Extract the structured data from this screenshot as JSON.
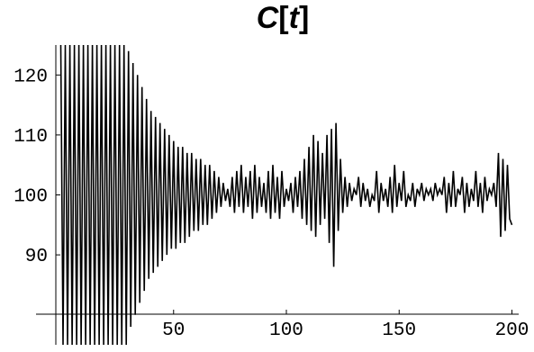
{
  "chart_data": {
    "type": "line",
    "title_parts": [
      "C",
      "[",
      "t",
      "]"
    ],
    "xlabel": "",
    "ylabel": "",
    "xlim": [
      -7,
      203
    ],
    "ylim": [
      75,
      125
    ],
    "x_ticks": [
      50,
      100,
      150,
      200
    ],
    "y_ticks": [
      90,
      100,
      110,
      120
    ],
    "grid": false,
    "series": [
      {
        "x": [
          0,
          1,
          2,
          3,
          4,
          5,
          6,
          7,
          8,
          9,
          10,
          11,
          12,
          13,
          14,
          15,
          16,
          17,
          18,
          19,
          20,
          21,
          22,
          23,
          24,
          25,
          26,
          27,
          28,
          29,
          30,
          31,
          32,
          33,
          34,
          35,
          36,
          37,
          38,
          39,
          40,
          41,
          42,
          43,
          44,
          45,
          46,
          47,
          48,
          49,
          50,
          51,
          52,
          53,
          54,
          55,
          56,
          57,
          58,
          59,
          60,
          61,
          62,
          63,
          64,
          65,
          66,
          67,
          68,
          69,
          70,
          71,
          72,
          73,
          74,
          75,
          76,
          77,
          78,
          79,
          80,
          81,
          82,
          83,
          84,
          85,
          86,
          87,
          88,
          89,
          90,
          91,
          92,
          93,
          94,
          95,
          96,
          97,
          98,
          99,
          100,
          101,
          102,
          103,
          104,
          105,
          106,
          107,
          108,
          109,
          110,
          111,
          112,
          113,
          114,
          115,
          116,
          117,
          118,
          119,
          120,
          121,
          122,
          123,
          124,
          125,
          126,
          127,
          128,
          129,
          130,
          131,
          132,
          133,
          134,
          135,
          136,
          137,
          138,
          139,
          140,
          141,
          142,
          143,
          144,
          145,
          146,
          147,
          148,
          149,
          150,
          151,
          152,
          153,
          154,
          155,
          156,
          157,
          158,
          159,
          160,
          161,
          162,
          163,
          164,
          165,
          166,
          167,
          168,
          169,
          170,
          171,
          172,
          173,
          174,
          175,
          176,
          177,
          178,
          179,
          180,
          181,
          182,
          183,
          184,
          185,
          186,
          187,
          188,
          189,
          190,
          191,
          192,
          193,
          194,
          195,
          196,
          197,
          198,
          199,
          200
        ],
        "values": [
          125,
          75,
          125,
          75,
          125,
          75,
          125,
          75,
          125,
          75,
          125,
          75,
          125,
          75,
          125,
          75,
          125,
          75,
          125,
          75,
          125,
          75,
          125,
          75,
          125,
          75,
          125,
          75,
          125,
          75,
          124,
          78,
          122,
          80,
          120,
          82,
          118,
          84,
          116,
          86,
          114,
          87,
          113,
          88,
          112,
          89,
          111,
          90,
          110,
          91,
          109,
          91,
          108,
          92,
          108,
          92,
          107,
          93,
          107,
          94,
          106,
          94,
          106,
          95,
          105,
          95,
          105,
          96,
          104,
          97,
          103,
          98,
          102,
          99,
          101,
          98,
          103,
          97,
          104,
          98,
          105,
          97,
          103,
          98,
          104,
          96,
          105,
          97,
          103,
          98,
          102,
          97,
          104,
          96,
          105,
          97,
          103,
          96,
          104,
          98,
          101,
          99,
          102,
          97,
          103,
          98,
          104,
          96,
          106,
          95,
          108,
          94,
          110,
          93,
          109,
          95,
          107,
          96,
          110,
          92,
          111,
          88,
          112,
          94,
          106,
          97,
          103,
          98,
          102,
          99,
          101,
          100,
          103,
          98,
          102,
          99,
          101,
          98,
          100,
          99,
          104,
          97,
          102,
          99,
          101,
          98,
          103,
          97,
          105,
          98,
          102,
          99,
          104,
          98,
          100,
          99,
          102,
          98,
          101,
          100,
          102,
          99,
          101,
          100,
          101,
          99,
          102,
          100,
          101,
          100,
          103,
          97,
          102,
          98,
          104,
          98,
          101,
          100,
          103,
          97,
          102,
          98,
          101,
          99,
          104,
          98,
          102,
          97,
          103,
          99,
          101,
          100,
          102,
          98,
          107,
          93,
          106,
          94,
          105,
          96,
          95
        ]
      }
    ]
  }
}
